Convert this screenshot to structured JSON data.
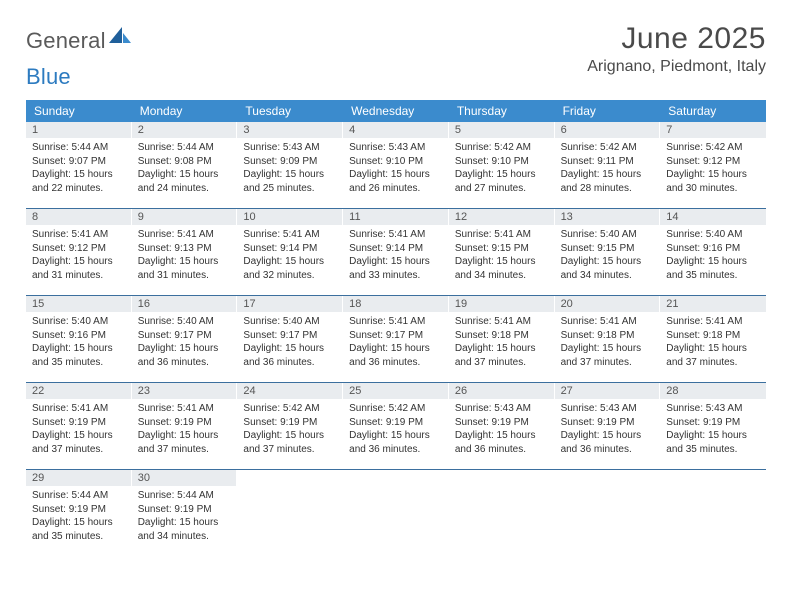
{
  "brand": {
    "word1": "General",
    "word2": "Blue"
  },
  "title": "June 2025",
  "location": "Arignano, Piedmont, Italy",
  "colors": {
    "header_bg": "#3b8bcd",
    "daynum_bg": "#e9ecef",
    "row_border": "#3b6f9e",
    "text": "#333333",
    "brand_gray": "#5a5a5a",
    "brand_blue": "#2d7bc0"
  },
  "weekdays": [
    "Sunday",
    "Monday",
    "Tuesday",
    "Wednesday",
    "Thursday",
    "Friday",
    "Saturday"
  ],
  "weeks": [
    [
      {
        "n": "1",
        "sunrise": "Sunrise: 5:44 AM",
        "sunset": "Sunset: 9:07 PM",
        "day1": "Daylight: 15 hours",
        "day2": "and 22 minutes."
      },
      {
        "n": "2",
        "sunrise": "Sunrise: 5:44 AM",
        "sunset": "Sunset: 9:08 PM",
        "day1": "Daylight: 15 hours",
        "day2": "and 24 minutes."
      },
      {
        "n": "3",
        "sunrise": "Sunrise: 5:43 AM",
        "sunset": "Sunset: 9:09 PM",
        "day1": "Daylight: 15 hours",
        "day2": "and 25 minutes."
      },
      {
        "n": "4",
        "sunrise": "Sunrise: 5:43 AM",
        "sunset": "Sunset: 9:10 PM",
        "day1": "Daylight: 15 hours",
        "day2": "and 26 minutes."
      },
      {
        "n": "5",
        "sunrise": "Sunrise: 5:42 AM",
        "sunset": "Sunset: 9:10 PM",
        "day1": "Daylight: 15 hours",
        "day2": "and 27 minutes."
      },
      {
        "n": "6",
        "sunrise": "Sunrise: 5:42 AM",
        "sunset": "Sunset: 9:11 PM",
        "day1": "Daylight: 15 hours",
        "day2": "and 28 minutes."
      },
      {
        "n": "7",
        "sunrise": "Sunrise: 5:42 AM",
        "sunset": "Sunset: 9:12 PM",
        "day1": "Daylight: 15 hours",
        "day2": "and 30 minutes."
      }
    ],
    [
      {
        "n": "8",
        "sunrise": "Sunrise: 5:41 AM",
        "sunset": "Sunset: 9:12 PM",
        "day1": "Daylight: 15 hours",
        "day2": "and 31 minutes."
      },
      {
        "n": "9",
        "sunrise": "Sunrise: 5:41 AM",
        "sunset": "Sunset: 9:13 PM",
        "day1": "Daylight: 15 hours",
        "day2": "and 31 minutes."
      },
      {
        "n": "10",
        "sunrise": "Sunrise: 5:41 AM",
        "sunset": "Sunset: 9:14 PM",
        "day1": "Daylight: 15 hours",
        "day2": "and 32 minutes."
      },
      {
        "n": "11",
        "sunrise": "Sunrise: 5:41 AM",
        "sunset": "Sunset: 9:14 PM",
        "day1": "Daylight: 15 hours",
        "day2": "and 33 minutes."
      },
      {
        "n": "12",
        "sunrise": "Sunrise: 5:41 AM",
        "sunset": "Sunset: 9:15 PM",
        "day1": "Daylight: 15 hours",
        "day2": "and 34 minutes."
      },
      {
        "n": "13",
        "sunrise": "Sunrise: 5:40 AM",
        "sunset": "Sunset: 9:15 PM",
        "day1": "Daylight: 15 hours",
        "day2": "and 34 minutes."
      },
      {
        "n": "14",
        "sunrise": "Sunrise: 5:40 AM",
        "sunset": "Sunset: 9:16 PM",
        "day1": "Daylight: 15 hours",
        "day2": "and 35 minutes."
      }
    ],
    [
      {
        "n": "15",
        "sunrise": "Sunrise: 5:40 AM",
        "sunset": "Sunset: 9:16 PM",
        "day1": "Daylight: 15 hours",
        "day2": "and 35 minutes."
      },
      {
        "n": "16",
        "sunrise": "Sunrise: 5:40 AM",
        "sunset": "Sunset: 9:17 PM",
        "day1": "Daylight: 15 hours",
        "day2": "and 36 minutes."
      },
      {
        "n": "17",
        "sunrise": "Sunrise: 5:40 AM",
        "sunset": "Sunset: 9:17 PM",
        "day1": "Daylight: 15 hours",
        "day2": "and 36 minutes."
      },
      {
        "n": "18",
        "sunrise": "Sunrise: 5:41 AM",
        "sunset": "Sunset: 9:17 PM",
        "day1": "Daylight: 15 hours",
        "day2": "and 36 minutes."
      },
      {
        "n": "19",
        "sunrise": "Sunrise: 5:41 AM",
        "sunset": "Sunset: 9:18 PM",
        "day1": "Daylight: 15 hours",
        "day2": "and 37 minutes."
      },
      {
        "n": "20",
        "sunrise": "Sunrise: 5:41 AM",
        "sunset": "Sunset: 9:18 PM",
        "day1": "Daylight: 15 hours",
        "day2": "and 37 minutes."
      },
      {
        "n": "21",
        "sunrise": "Sunrise: 5:41 AM",
        "sunset": "Sunset: 9:18 PM",
        "day1": "Daylight: 15 hours",
        "day2": "and 37 minutes."
      }
    ],
    [
      {
        "n": "22",
        "sunrise": "Sunrise: 5:41 AM",
        "sunset": "Sunset: 9:19 PM",
        "day1": "Daylight: 15 hours",
        "day2": "and 37 minutes."
      },
      {
        "n": "23",
        "sunrise": "Sunrise: 5:41 AM",
        "sunset": "Sunset: 9:19 PM",
        "day1": "Daylight: 15 hours",
        "day2": "and 37 minutes."
      },
      {
        "n": "24",
        "sunrise": "Sunrise: 5:42 AM",
        "sunset": "Sunset: 9:19 PM",
        "day1": "Daylight: 15 hours",
        "day2": "and 37 minutes."
      },
      {
        "n": "25",
        "sunrise": "Sunrise: 5:42 AM",
        "sunset": "Sunset: 9:19 PM",
        "day1": "Daylight: 15 hours",
        "day2": "and 36 minutes."
      },
      {
        "n": "26",
        "sunrise": "Sunrise: 5:43 AM",
        "sunset": "Sunset: 9:19 PM",
        "day1": "Daylight: 15 hours",
        "day2": "and 36 minutes."
      },
      {
        "n": "27",
        "sunrise": "Sunrise: 5:43 AM",
        "sunset": "Sunset: 9:19 PM",
        "day1": "Daylight: 15 hours",
        "day2": "and 36 minutes."
      },
      {
        "n": "28",
        "sunrise": "Sunrise: 5:43 AM",
        "sunset": "Sunset: 9:19 PM",
        "day1": "Daylight: 15 hours",
        "day2": "and 35 minutes."
      }
    ],
    [
      {
        "n": "29",
        "sunrise": "Sunrise: 5:44 AM",
        "sunset": "Sunset: 9:19 PM",
        "day1": "Daylight: 15 hours",
        "day2": "and 35 minutes."
      },
      {
        "n": "30",
        "sunrise": "Sunrise: 5:44 AM",
        "sunset": "Sunset: 9:19 PM",
        "day1": "Daylight: 15 hours",
        "day2": "and 34 minutes."
      },
      null,
      null,
      null,
      null,
      null
    ]
  ]
}
